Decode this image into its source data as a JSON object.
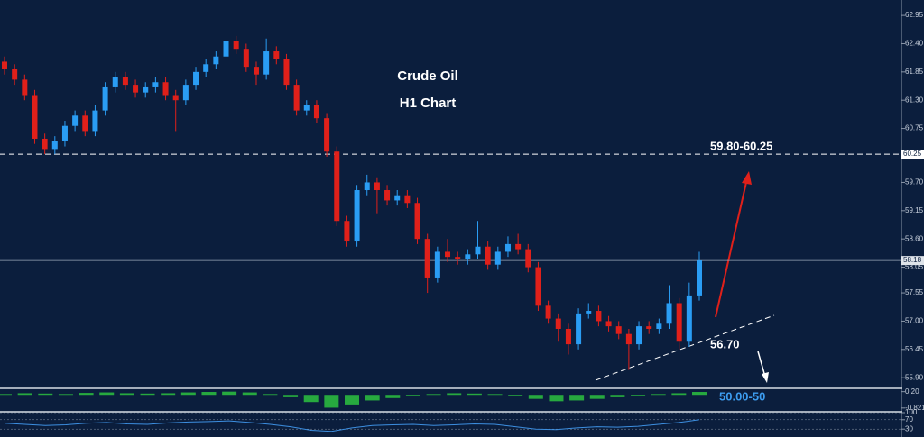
{
  "chart_data": [
    {
      "type": "candlestick",
      "title": "Crude Oil",
      "subtitle": "H1 Chart",
      "open": [
        62.05,
        61.9,
        61.7,
        61.4,
        60.55,
        60.35,
        60.5,
        60.8,
        61.0,
        60.7,
        61.1,
        61.55,
        61.75,
        61.6,
        61.45,
        61.55,
        61.65,
        61.4,
        61.3,
        61.6,
        61.85,
        62.0,
        62.15,
        62.45,
        62.3,
        61.95,
        61.8,
        62.25,
        62.1,
        61.6,
        61.1,
        61.2,
        60.95,
        60.3,
        58.95,
        58.55,
        59.55,
        59.7,
        59.55,
        59.35,
        59.45,
        59.3,
        58.6,
        57.85,
        58.35,
        58.25,
        58.2,
        58.3,
        58.45,
        58.1,
        58.35,
        58.5,
        58.4,
        58.05,
        57.3,
        57.05,
        56.85,
        56.55,
        57.15,
        57.2,
        57.0,
        56.9,
        56.75,
        56.55,
        56.9,
        56.85,
        56.95,
        57.35,
        56.6,
        57.5
      ],
      "high": [
        62.15,
        62.0,
        61.8,
        61.5,
        60.65,
        60.6,
        60.9,
        61.1,
        61.1,
        61.2,
        61.65,
        61.85,
        61.85,
        61.7,
        61.65,
        61.75,
        61.75,
        61.5,
        61.7,
        61.95,
        62.1,
        62.25,
        62.6,
        62.55,
        62.4,
        62.05,
        62.5,
        62.35,
        62.2,
        61.7,
        61.3,
        61.3,
        61.05,
        60.4,
        59.05,
        59.65,
        59.85,
        59.8,
        59.65,
        59.55,
        59.55,
        59.4,
        58.7,
        58.45,
        58.6,
        58.35,
        58.4,
        58.95,
        58.55,
        58.45,
        58.65,
        58.7,
        58.5,
        58.15,
        57.4,
        57.15,
        56.95,
        57.25,
        57.35,
        57.3,
        57.1,
        57.0,
        56.85,
        57.0,
        57.0,
        57.05,
        57.7,
        57.45,
        57.75,
        58.35
      ],
      "low": [
        61.8,
        61.6,
        61.3,
        60.45,
        60.25,
        60.25,
        60.4,
        60.7,
        60.6,
        60.6,
        61.0,
        61.45,
        61.5,
        61.35,
        61.35,
        61.45,
        61.3,
        60.7,
        61.2,
        61.5,
        61.75,
        61.9,
        62.05,
        62.2,
        61.85,
        61.6,
        61.7,
        62.0,
        61.5,
        61.0,
        61.0,
        60.85,
        60.2,
        58.85,
        58.45,
        58.45,
        59.45,
        59.1,
        59.25,
        59.25,
        59.2,
        58.5,
        57.55,
        57.75,
        58.15,
        58.1,
        58.1,
        58.2,
        58.0,
        58.0,
        58.25,
        58.3,
        57.95,
        57.2,
        56.95,
        56.6,
        56.35,
        56.45,
        57.05,
        56.9,
        56.8,
        56.65,
        56.05,
        56.45,
        56.75,
        56.75,
        56.85,
        56.45,
        56.5,
        57.4
      ],
      "close": [
        61.9,
        61.7,
        61.4,
        60.55,
        60.35,
        60.5,
        60.8,
        61.0,
        60.7,
        61.1,
        61.55,
        61.75,
        61.6,
        61.45,
        61.55,
        61.65,
        61.4,
        61.3,
        61.6,
        61.85,
        62.0,
        62.15,
        62.45,
        62.3,
        61.95,
        61.8,
        62.25,
        62.1,
        61.6,
        61.1,
        61.2,
        60.95,
        60.3,
        58.95,
        58.55,
        59.55,
        59.7,
        59.55,
        59.35,
        59.45,
        59.3,
        58.6,
        57.85,
        58.35,
        58.25,
        58.2,
        58.3,
        58.45,
        58.1,
        58.35,
        58.5,
        58.4,
        58.05,
        57.3,
        57.05,
        56.85,
        56.55,
        57.15,
        57.2,
        57.0,
        56.9,
        56.75,
        56.55,
        56.9,
        56.85,
        56.95,
        57.35,
        56.6,
        57.5,
        58.18
      ],
      "up_color": "#2a9df4",
      "down_color": "#e0201a",
      "ylim": [
        55.71,
        63.25
      ],
      "yticks": [
        62.95,
        {
          "value": 62.4,
          "label": "62.40"
        },
        61.85,
        {
          "value": 61.3,
          "label": "61.30"
        },
        60.75,
        {
          "value": 59.7,
          "label": "59.70"
        },
        59.15,
        {
          "value": 58.6,
          "label": "58.60"
        },
        58.05,
        57.55,
        {
          "value": 57,
          "label": "57.00"
        },
        56.45,
        {
          "value": 55.9,
          "label": "55.90"
        }
      ],
      "level": 60.25,
      "last_price": 58.18,
      "annotations": [
        "59.80-60.25",
        "56.70",
        "50.00-50"
      ]
    },
    {
      "type": "bar",
      "color": "#2ecc40",
      "values": [
        0.05,
        0.1,
        0.08,
        0.05,
        0.12,
        0.15,
        0.1,
        0.08,
        0.1,
        0.15,
        0.18,
        0.2,
        0.15,
        0.05,
        -0.15,
        -0.45,
        -0.8,
        -0.6,
        -0.35,
        -0.2,
        -0.1,
        0.05,
        0.1,
        0.08,
        0.05,
        -0.05,
        -0.25,
        -0.4,
        -0.35,
        -0.25,
        -0.15,
        -0.05,
        0.05,
        0.1,
        0.18
      ],
      "ylim": [
        -1.0,
        0.35
      ],
      "yticks": [
        {
          "value": 0.2,
          "label": "0.20"
        },
        -0.821
      ]
    },
    {
      "type": "line",
      "color": "#3d8fe0",
      "values": [
        55,
        50,
        45,
        48,
        55,
        58,
        52,
        50,
        56,
        60,
        62,
        65,
        58,
        50,
        40,
        25,
        20,
        35,
        45,
        48,
        50,
        45,
        48,
        52,
        50,
        40,
        30,
        28,
        35,
        40,
        38,
        42,
        50,
        58,
        70
      ],
      "ylim": [
        0,
        100
      ],
      "yticks": [
        100,
        70,
        30
      ]
    }
  ]
}
